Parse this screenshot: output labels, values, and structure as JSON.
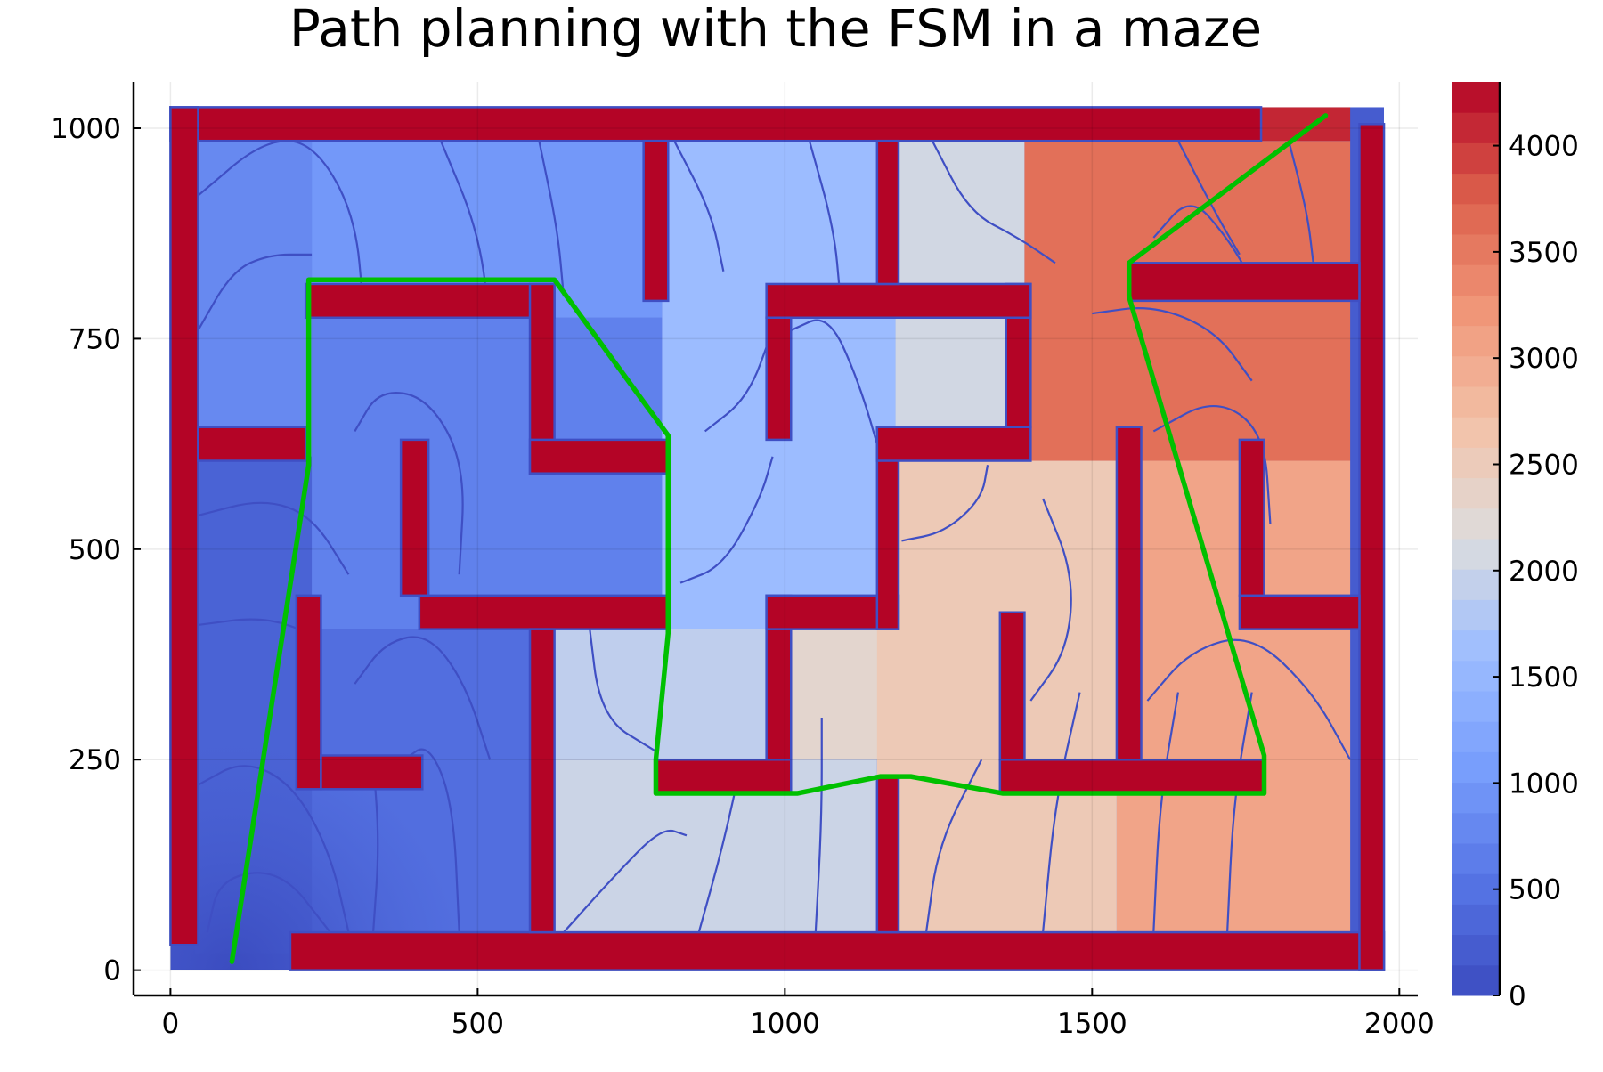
{
  "chart_data": {
    "type": "heatmap",
    "title": "Path planning with the FSM in a maze",
    "xlabel": "",
    "ylabel": "",
    "xlim": [
      -60,
      2030
    ],
    "ylim": [
      -30,
      1055
    ],
    "x_ticks": [
      0,
      500,
      1000,
      1500,
      2000
    ],
    "y_ticks": [
      0,
      250,
      500,
      750,
      1000
    ],
    "grid": true,
    "colorbar": {
      "range": [
        0,
        4300
      ],
      "ticks": [
        0,
        500,
        1000,
        1500,
        2000,
        2500,
        3000,
        3500,
        4000
      ],
      "colormap": "coolwarm",
      "levels": 30,
      "colors": [
        "#3b4cc0",
        "#b40426"
      ]
    },
    "field": {
      "description_values": "distance-to-start level per maze cell",
      "cells": [
        {
          "x": [
            40,
            230
          ],
          "y": [
            610,
            985
          ],
          "value": 800
        },
        {
          "x": [
            40,
            230
          ],
          "y": [
            20,
            610
          ],
          "value": 300
        },
        {
          "x": [
            230,
            585
          ],
          "y": [
            20,
            405
          ],
          "value": 450
        },
        {
          "x": [
            230,
            800
          ],
          "y": [
            405,
            775
          ],
          "value": 700
        },
        {
          "x": [
            230,
            800
          ],
          "y": [
            775,
            985
          ],
          "value": 1000
        },
        {
          "x": [
            585,
            1150
          ],
          "y": [
            20,
            250
          ],
          "value": 2000
        },
        {
          "x": [
            585,
            1000
          ],
          "y": [
            250,
            405
          ],
          "value": 1900
        },
        {
          "x": [
            800,
            1180
          ],
          "y": [
            405,
            985
          ],
          "value": 1600
        },
        {
          "x": [
            1180,
            1390
          ],
          "y": [
            405,
            985
          ],
          "value": 2050
        },
        {
          "x": [
            1000,
            1180
          ],
          "y": [
            250,
            405
          ],
          "value": 2300
        },
        {
          "x": [
            1150,
            1540
          ],
          "y": [
            20,
            605
          ],
          "value": 2550
        },
        {
          "x": [
            1390,
            1920
          ],
          "y": [
            605,
            985
          ],
          "value": 3600
        },
        {
          "x": [
            1540,
            1920
          ],
          "y": [
            20,
            605
          ],
          "value": 3050
        },
        {
          "x": [
            1180,
            1920
          ],
          "y": [
            985,
            1025
          ],
          "value": 4100
        }
      ]
    },
    "walls": [
      [
        0,
        985,
        1775,
        1025
      ],
      [
        0,
        30,
        45,
        1025
      ],
      [
        195,
        0,
        1975,
        45
      ],
      [
        1935,
        0,
        1975,
        1005
      ],
      [
        45,
        605,
        220,
        645
      ],
      [
        220,
        775,
        625,
        815
      ],
      [
        585,
        590,
        625,
        815
      ],
      [
        585,
        590,
        810,
        630
      ],
      [
        770,
        795,
        810,
        985
      ],
      [
        405,
        405,
        810,
        445
      ],
      [
        375,
        445,
        420,
        630
      ],
      [
        205,
        215,
        245,
        445
      ],
      [
        245,
        215,
        410,
        255
      ],
      [
        585,
        45,
        625,
        405
      ],
      [
        790,
        210,
        1010,
        250
      ],
      [
        970,
        250,
        1010,
        445
      ],
      [
        970,
        405,
        1185,
        445
      ],
      [
        1150,
        405,
        1185,
        645
      ],
      [
        1150,
        605,
        1400,
        645
      ],
      [
        1360,
        645,
        1400,
        815
      ],
      [
        970,
        775,
        1400,
        815
      ],
      [
        970,
        630,
        1010,
        775
      ],
      [
        1150,
        815,
        1185,
        985
      ],
      [
        1150,
        45,
        1185,
        230
      ],
      [
        1350,
        210,
        1780,
        250
      ],
      [
        1350,
        250,
        1390,
        425
      ],
      [
        1540,
        250,
        1580,
        645
      ],
      [
        1560,
        795,
        1935,
        840
      ],
      [
        1740,
        405,
        1935,
        445
      ],
      [
        1740,
        445,
        1780,
        630
      ]
    ],
    "series": [
      {
        "x": [
          100,
          225,
          225,
          625,
          810,
          810,
          790,
          790,
          1020,
          1155,
          1205,
          1355,
          1780,
          1780,
          1560,
          1560,
          1880
        ],
        "y": [
          10,
          600,
          820,
          820,
          635,
          400,
          250,
          210,
          210,
          230,
          230,
          210,
          210,
          255,
          800,
          840,
          1015
        ],
        "color": "#00c000"
      }
    ]
  }
}
